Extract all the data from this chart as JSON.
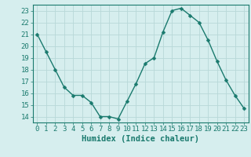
{
  "x": [
    0,
    1,
    2,
    3,
    4,
    5,
    6,
    7,
    8,
    9,
    10,
    11,
    12,
    13,
    14,
    15,
    16,
    17,
    18,
    19,
    20,
    21,
    22,
    23
  ],
  "y": [
    21.0,
    19.5,
    18.0,
    16.5,
    15.8,
    15.8,
    15.2,
    14.0,
    14.0,
    13.8,
    15.3,
    16.8,
    18.5,
    19.0,
    21.2,
    23.0,
    23.2,
    22.6,
    22.0,
    20.5,
    18.7,
    17.1,
    15.8,
    14.7
  ],
  "line_color": "#1a7a6e",
  "marker": "D",
  "marker_size": 2.5,
  "bg_color": "#d6eeee",
  "grid_color": "#b8d8d8",
  "xlabel": "Humidex (Indice chaleur)",
  "xlim": [
    -0.5,
    23.5
  ],
  "ylim": [
    13.5,
    23.5
  ],
  "xticks": [
    0,
    1,
    2,
    3,
    4,
    5,
    6,
    7,
    8,
    9,
    10,
    11,
    12,
    13,
    14,
    15,
    16,
    17,
    18,
    19,
    20,
    21,
    22,
    23
  ],
  "yticks": [
    14,
    15,
    16,
    17,
    18,
    19,
    20,
    21,
    22,
    23
  ],
  "tick_color": "#1a7a6e",
  "xlabel_fontsize": 7.5,
  "tick_fontsize": 6.5
}
